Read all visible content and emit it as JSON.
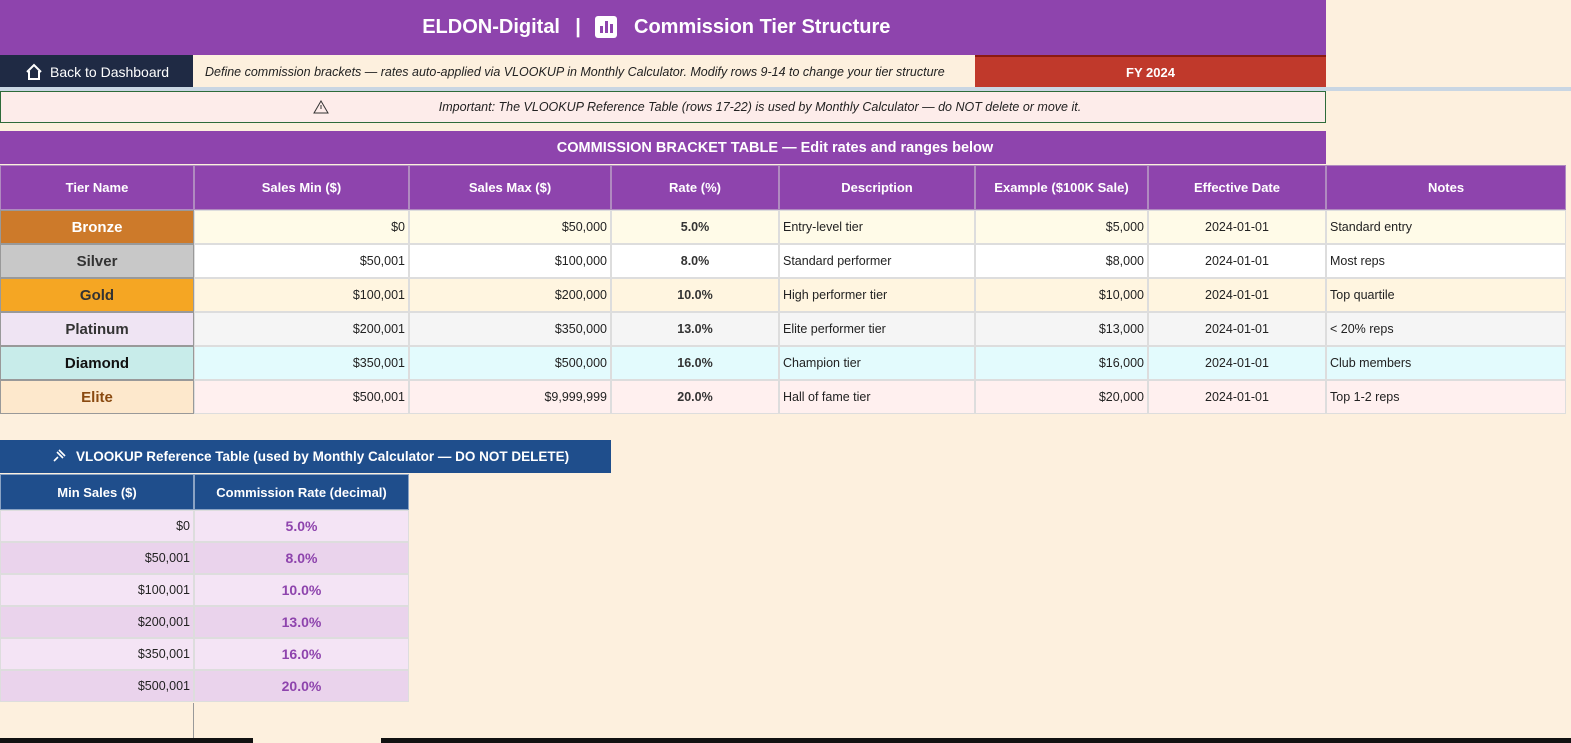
{
  "header": {
    "brand": "ELDON-Digital",
    "separator": "|",
    "title": "Commission Tier Structure"
  },
  "toolbar": {
    "back_button": "Back to Dashboard",
    "info": "Define commission brackets — rates auto-applied via VLOOKUP in Monthly Calculator. Modify rows 9-14 to change your tier structure",
    "fiscal_year": "FY 2024"
  },
  "warning": "Important: The VLOOKUP Reference Table (rows 17-22) is used by Monthly Calculator — do NOT delete or move it.",
  "bracket_table": {
    "title": "COMMISSION BRACKET TABLE  —  Edit rates and ranges below",
    "columns": [
      "Tier Name",
      "Sales Min ($)",
      "Sales Max ($)",
      "Rate (%)",
      "Description",
      "Example ($100K Sale)",
      "Effective Date",
      "Notes"
    ],
    "rows": [
      [
        "Bronze",
        "$0",
        "$50,000",
        "5.0%",
        "Entry-level tier",
        "$5,000",
        "2024-01-01",
        "Standard entry"
      ],
      [
        "Silver",
        "$50,001",
        "$100,000",
        "8.0%",
        "Standard performer",
        "$8,000",
        "2024-01-01",
        "Most reps"
      ],
      [
        "Gold",
        "$100,001",
        "$200,000",
        "10.0%",
        "High performer tier",
        "$10,000",
        "2024-01-01",
        "Top quartile"
      ],
      [
        "Platinum",
        "$200,001",
        "$350,000",
        "13.0%",
        "Elite performer tier",
        "$13,000",
        "2024-01-01",
        "< 20% reps"
      ],
      [
        "Diamond",
        "$350,001",
        "$500,000",
        "16.0%",
        "Champion tier",
        "$16,000",
        "2024-01-01",
        "Club members"
      ],
      [
        "Elite",
        "$500,001",
        "$9,999,999",
        "20.0%",
        "Hall of fame tier",
        "$20,000",
        "2024-01-01",
        "Top 1-2 reps"
      ]
    ]
  },
  "vlookup_table": {
    "title": "VLOOKUP Reference Table  (used by Monthly Calculator — DO NOT DELETE)",
    "columns": [
      "Min Sales ($)",
      "Commission Rate (decimal)"
    ],
    "rows": [
      [
        "$0",
        "5.0%"
      ],
      [
        "$50,001",
        "8.0%"
      ],
      [
        "$100,001",
        "10.0%"
      ],
      [
        "$200,001",
        "13.0%"
      ],
      [
        "$350,001",
        "16.0%"
      ],
      [
        "$500,001",
        "20.0%"
      ]
    ]
  }
}
